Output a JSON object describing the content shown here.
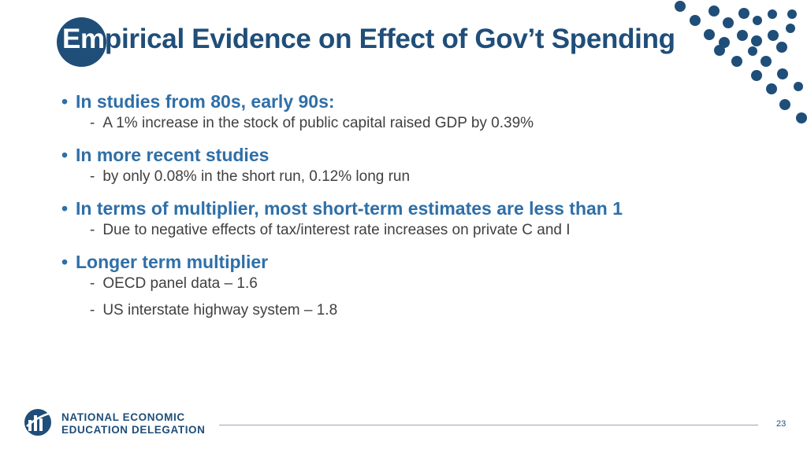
{
  "slide": {
    "title_prefix": "Em",
    "title_rest": "pirical Evidence on Effect of Gov’t Spending",
    "bullets": [
      {
        "text": "In studies from 80s, early 90s:",
        "subs": [
          "A 1% increase in the stock of public capital raised GDP by 0.39%"
        ]
      },
      {
        "text": "In more recent studies",
        "subs": [
          "by only 0.08% in the short run, 0.12% long run"
        ]
      },
      {
        "text": "In terms of multiplier, most short-term estimates are less than 1",
        "subs": [
          "Due to negative effects of tax/interest rate increases on private C and I"
        ]
      },
      {
        "text": "Longer term multiplier",
        "subs": [
          "OECD panel data – 1.6",
          "US interstate highway system – 1.8"
        ]
      }
    ]
  },
  "footer": {
    "org_line1": "NATIONAL ECONOMIC",
    "org_line2": "EDUCATION DELEGATION",
    "page_number": "23"
  },
  "colors": {
    "title": "#1f4e79",
    "bullet": "#2e6fa8",
    "body": "#404040",
    "dots": "#1f4e79"
  },
  "icons": {
    "logo": "globe-logo-icon",
    "decoration": "dot-pattern-decoration"
  }
}
